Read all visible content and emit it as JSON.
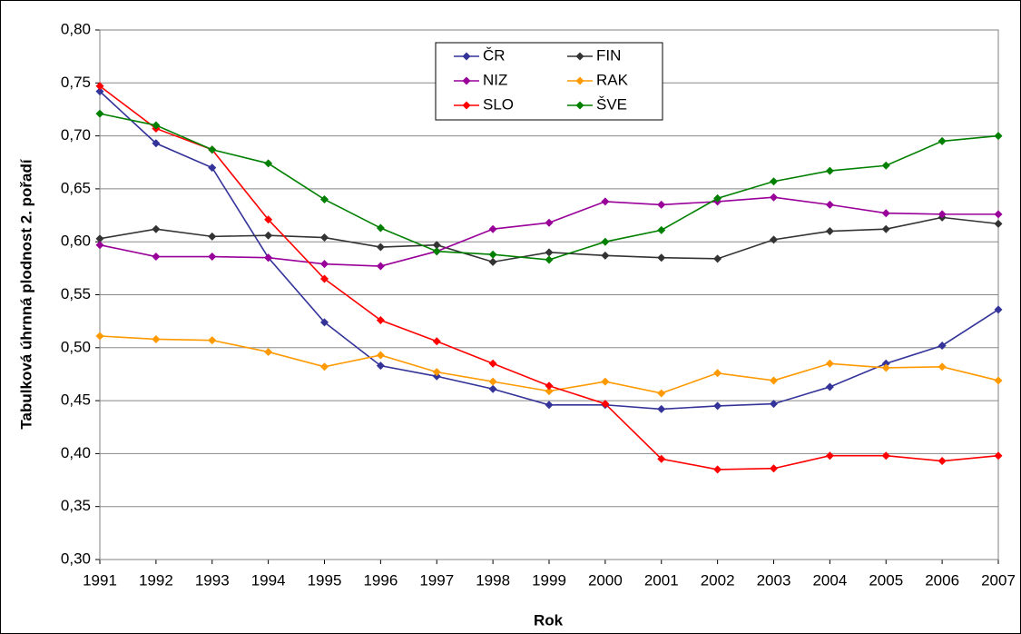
{
  "chart_data": {
    "type": "line",
    "xlabel": "Rok",
    "ylabel": "Tabulková úhrnná plodnost 2. pořadí",
    "x": [
      1991,
      1992,
      1993,
      1994,
      1995,
      1996,
      1997,
      1998,
      1999,
      2000,
      2001,
      2002,
      2003,
      2004,
      2005,
      2006,
      2007
    ],
    "xlim": [
      1991,
      2007
    ],
    "xticks": [
      1991,
      1992,
      1993,
      1994,
      1995,
      1996,
      1997,
      1998,
      1999,
      2000,
      2001,
      2002,
      2003,
      2004,
      2005,
      2006,
      2007
    ],
    "ylim": [
      0.3,
      0.8
    ],
    "yticks": [
      {
        "value": 0.3,
        "label": "0,30"
      },
      {
        "value": 0.35,
        "label": "0,35"
      },
      {
        "value": 0.4,
        "label": "0,40"
      },
      {
        "value": 0.45,
        "label": "0,45"
      },
      {
        "value": 0.5,
        "label": "0,50"
      },
      {
        "value": 0.55,
        "label": "0,55"
      },
      {
        "value": 0.6,
        "label": "0,60"
      },
      {
        "value": 0.65,
        "label": "0,65"
      },
      {
        "value": 0.7,
        "label": "0,70"
      },
      {
        "value": 0.75,
        "label": "0,75"
      },
      {
        "value": 0.8,
        "label": "0,80"
      }
    ],
    "grid": true,
    "legend": "top",
    "series": [
      {
        "name": "ČR",
        "color": "#333399",
        "values": [
          0.742,
          0.693,
          0.67,
          0.585,
          0.524,
          0.483,
          0.473,
          0.461,
          0.446,
          0.446,
          0.442,
          0.445,
          0.447,
          0.463,
          0.485,
          0.502,
          0.536
        ]
      },
      {
        "name": "FIN",
        "color": "#333333",
        "values": [
          0.603,
          0.612,
          0.605,
          0.606,
          0.604,
          0.595,
          0.597,
          0.581,
          0.59,
          0.587,
          0.585,
          0.584,
          0.602,
          0.61,
          0.612,
          0.623,
          0.617
        ]
      },
      {
        "name": "NIZ",
        "color": "#990099",
        "values": [
          0.597,
          0.586,
          0.586,
          0.585,
          0.579,
          0.577,
          0.591,
          0.612,
          0.618,
          0.638,
          0.635,
          0.638,
          0.642,
          0.635,
          0.627,
          0.626,
          0.626
        ]
      },
      {
        "name": "RAK",
        "color": "#ff9900",
        "values": [
          0.511,
          0.508,
          0.507,
          0.496,
          0.482,
          0.493,
          0.477,
          0.468,
          0.459,
          0.468,
          0.457,
          0.476,
          0.469,
          0.485,
          0.481,
          0.482,
          0.469
        ]
      },
      {
        "name": "SLO",
        "color": "#ff0000",
        "values": [
          0.747,
          0.707,
          0.687,
          0.621,
          0.565,
          0.526,
          0.506,
          0.485,
          0.464,
          0.447,
          0.395,
          0.385,
          0.386,
          0.398,
          0.398,
          0.393,
          0.398
        ]
      },
      {
        "name": "ŠVE",
        "color": "#008000",
        "values": [
          0.721,
          0.71,
          0.687,
          0.674,
          0.64,
          0.613,
          0.591,
          0.588,
          0.583,
          0.6,
          0.611,
          0.641,
          0.657,
          0.667,
          0.672,
          0.695,
          0.7
        ]
      }
    ]
  }
}
